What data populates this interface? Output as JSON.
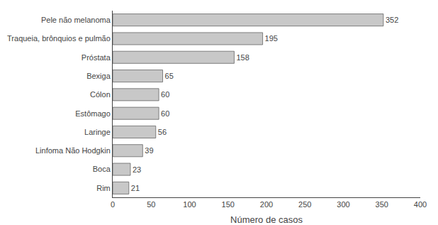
{
  "chart_data": {
    "type": "bar",
    "orientation": "horizontal",
    "categories": [
      "Rim",
      "Boca",
      "Linfoma Não Hodgkin",
      "Laringe",
      "Estômago",
      "Cólon",
      "Bexiga",
      "Próstata",
      "Traqueia, brônquios e pulmão",
      "Pele não melanoma"
    ],
    "values": [
      21,
      23,
      39,
      56,
      60,
      60,
      65,
      158,
      195,
      352
    ],
    "color": "#c8c8c8",
    "xlabel": "Número de casos",
    "xlim": [
      0,
      400
    ],
    "xticks": [
      0,
      50,
      100,
      150,
      200,
      250,
      300,
      350,
      400
    ],
    "grid": false,
    "data_labels": true
  }
}
